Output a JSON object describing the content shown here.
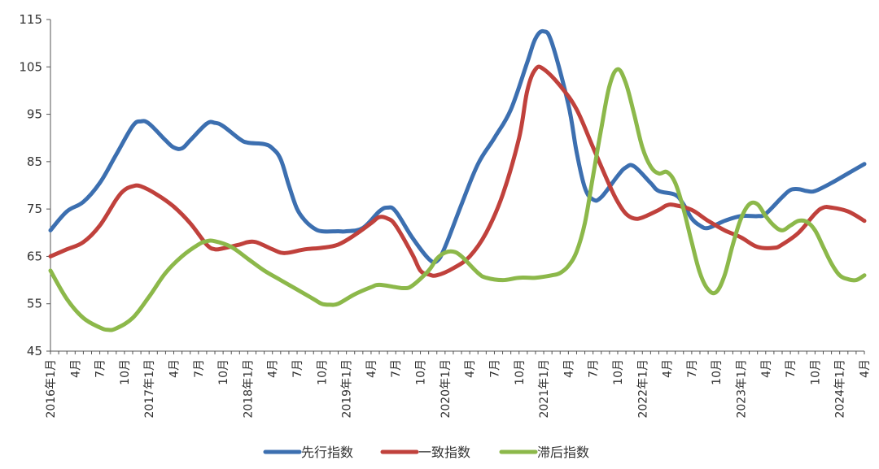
{
  "chart_data": {
    "type": "line",
    "y_axis": {
      "min": 45,
      "max": 115,
      "ticks": [
        45,
        55,
        65,
        75,
        85,
        95,
        105,
        115
      ]
    },
    "x_start": "2016-01",
    "x_end": "2024-04",
    "x_tick_labels": [
      "2016年1月",
      "4月",
      "7月",
      "10月",
      "2017年1月",
      "4月",
      "7月",
      "10月",
      "2018年1月",
      "4月",
      "7月",
      "10月",
      "2019年1月",
      "4月",
      "7月",
      "10月",
      "2020年1月",
      "4月",
      "7月",
      "10月",
      "2021年1月",
      "4月",
      "7月",
      "10月",
      "2022年1月",
      "4月",
      "7月",
      "10月",
      "2023年1月",
      "4月",
      "7月",
      "10月",
      "2024年1月",
      "4月"
    ],
    "legend_position": "bottom",
    "grid": false,
    "series": [
      {
        "name": "先行指数",
        "color": "#3c6fb0",
        "keypoints": [
          [
            "2016-01",
            70.5
          ],
          [
            "2016-03",
            74.5
          ],
          [
            "2016-05",
            76.5
          ],
          [
            "2016-07",
            80.5
          ],
          [
            "2016-09",
            86.5
          ],
          [
            "2016-11",
            92.5
          ],
          [
            "2016-12",
            93.5
          ],
          [
            "2017-01",
            93.0
          ],
          [
            "2017-03",
            89.5
          ],
          [
            "2017-04",
            88.0
          ],
          [
            "2017-05",
            87.8
          ],
          [
            "2017-06",
            89.5
          ],
          [
            "2017-08",
            93.0
          ],
          [
            "2017-09",
            93.2
          ],
          [
            "2017-10",
            92.5
          ],
          [
            "2017-12",
            89.8
          ],
          [
            "2018-01",
            89.0
          ],
          [
            "2018-03",
            88.7
          ],
          [
            "2018-04",
            87.8
          ],
          [
            "2018-05",
            85.5
          ],
          [
            "2018-06",
            80.0
          ],
          [
            "2018-07",
            75.0
          ],
          [
            "2018-08",
            72.5
          ],
          [
            "2018-09",
            71.0
          ],
          [
            "2018-10",
            70.3
          ],
          [
            "2018-12",
            70.3
          ],
          [
            "2019-01",
            70.3
          ],
          [
            "2019-03",
            71.0
          ],
          [
            "2019-05",
            74.5
          ],
          [
            "2019-06",
            75.3
          ],
          [
            "2019-07",
            74.5
          ],
          [
            "2019-09",
            69.0
          ],
          [
            "2019-11",
            64.5
          ],
          [
            "2019-12",
            64.0
          ],
          [
            "2020-01",
            67.0
          ],
          [
            "2020-03",
            76.0
          ],
          [
            "2020-05",
            84.5
          ],
          [
            "2020-07",
            90.0
          ],
          [
            "2020-09",
            96.0
          ],
          [
            "2020-11",
            106.0
          ],
          [
            "2020-12",
            111.0
          ],
          [
            "2021-01",
            112.5
          ],
          [
            "2021-02",
            110.0
          ],
          [
            "2021-04",
            97.0
          ],
          [
            "2021-05",
            87.0
          ],
          [
            "2021-06",
            79.5
          ],
          [
            "2021-07",
            77.0
          ],
          [
            "2021-08",
            77.5
          ],
          [
            "2021-10",
            82.0
          ],
          [
            "2021-11",
            83.8
          ],
          [
            "2021-12",
            84.0
          ],
          [
            "2022-02",
            80.5
          ],
          [
            "2022-03",
            78.8
          ],
          [
            "2022-05",
            78.0
          ],
          [
            "2022-06",
            76.0
          ],
          [
            "2022-07",
            73.0
          ],
          [
            "2022-08",
            71.5
          ],
          [
            "2022-09",
            71.0
          ],
          [
            "2022-11",
            72.5
          ],
          [
            "2023-01",
            73.5
          ],
          [
            "2023-03",
            73.5
          ],
          [
            "2023-04",
            74.0
          ],
          [
            "2023-06",
            77.5
          ],
          [
            "2023-07",
            79.0
          ],
          [
            "2023-08",
            79.2
          ],
          [
            "2023-09",
            78.8
          ],
          [
            "2023-10",
            78.8
          ],
          [
            "2023-12",
            80.5
          ],
          [
            "2024-02",
            82.5
          ],
          [
            "2024-04",
            84.5
          ]
        ]
      },
      {
        "name": "一致指数",
        "color": "#c0413c",
        "keypoints": [
          [
            "2016-01",
            65.0
          ],
          [
            "2016-03",
            66.5
          ],
          [
            "2016-05",
            68.0
          ],
          [
            "2016-07",
            71.5
          ],
          [
            "2016-09",
            77.0
          ],
          [
            "2016-10",
            79.0
          ],
          [
            "2016-11",
            79.8
          ],
          [
            "2016-12",
            79.8
          ],
          [
            "2017-02",
            78.0
          ],
          [
            "2017-04",
            75.5
          ],
          [
            "2017-06",
            72.0
          ],
          [
            "2017-08",
            67.5
          ],
          [
            "2017-09",
            66.5
          ],
          [
            "2017-10",
            66.7
          ],
          [
            "2017-12",
            67.5
          ],
          [
            "2018-01",
            68.0
          ],
          [
            "2018-02",
            68.0
          ],
          [
            "2018-04",
            66.5
          ],
          [
            "2018-05",
            65.8
          ],
          [
            "2018-06",
            65.8
          ],
          [
            "2018-08",
            66.5
          ],
          [
            "2018-10",
            66.8
          ],
          [
            "2018-12",
            67.5
          ],
          [
            "2019-02",
            69.5
          ],
          [
            "2019-04",
            72.0
          ],
          [
            "2019-05",
            73.3
          ],
          [
            "2019-06",
            73.0
          ],
          [
            "2019-07",
            71.5
          ],
          [
            "2019-09",
            65.5
          ],
          [
            "2019-10",
            62.0
          ],
          [
            "2019-11",
            61.2
          ],
          [
            "2019-12",
            61.0
          ],
          [
            "2020-02",
            62.5
          ],
          [
            "2020-04",
            65.0
          ],
          [
            "2020-06",
            70.0
          ],
          [
            "2020-08",
            78.0
          ],
          [
            "2020-10",
            90.0
          ],
          [
            "2020-11",
            100.0
          ],
          [
            "2020-12",
            104.5
          ],
          [
            "2021-01",
            104.5
          ],
          [
            "2021-03",
            101.0
          ],
          [
            "2021-05",
            96.0
          ],
          [
            "2021-07",
            88.0
          ],
          [
            "2021-09",
            80.0
          ],
          [
            "2021-10",
            76.5
          ],
          [
            "2021-11",
            74.0
          ],
          [
            "2021-12",
            73.0
          ],
          [
            "2022-01",
            73.2
          ],
          [
            "2022-03",
            74.8
          ],
          [
            "2022-04",
            75.8
          ],
          [
            "2022-05",
            75.8
          ],
          [
            "2022-07",
            74.8
          ],
          [
            "2022-09",
            72.5
          ],
          [
            "2022-11",
            70.5
          ],
          [
            "2023-01",
            69.0
          ],
          [
            "2023-03",
            67.0
          ],
          [
            "2023-05",
            66.8
          ],
          [
            "2023-06",
            67.5
          ],
          [
            "2023-08",
            70.0
          ],
          [
            "2023-10",
            74.0
          ],
          [
            "2023-11",
            75.3
          ],
          [
            "2023-12",
            75.3
          ],
          [
            "2024-02",
            74.5
          ],
          [
            "2024-04",
            72.5
          ]
        ]
      },
      {
        "name": "滞后指数",
        "color": "#8cb84a",
        "keypoints": [
          [
            "2016-01",
            62.0
          ],
          [
            "2016-03",
            56.0
          ],
          [
            "2016-05",
            52.0
          ],
          [
            "2016-07",
            50.0
          ],
          [
            "2016-08",
            49.5
          ],
          [
            "2016-09",
            49.8
          ],
          [
            "2016-11",
            52.0
          ],
          [
            "2017-01",
            56.5
          ],
          [
            "2017-03",
            61.5
          ],
          [
            "2017-05",
            65.0
          ],
          [
            "2017-07",
            67.5
          ],
          [
            "2017-08",
            68.2
          ],
          [
            "2017-09",
            68.2
          ],
          [
            "2017-11",
            67.0
          ],
          [
            "2018-01",
            64.5
          ],
          [
            "2018-03",
            62.0
          ],
          [
            "2018-05",
            60.0
          ],
          [
            "2018-07",
            58.0
          ],
          [
            "2018-09",
            56.0
          ],
          [
            "2018-10",
            55.0
          ],
          [
            "2018-11",
            54.8
          ],
          [
            "2018-12",
            55.0
          ],
          [
            "2019-02",
            57.0
          ],
          [
            "2019-04",
            58.5
          ],
          [
            "2019-05",
            59.0
          ],
          [
            "2019-07",
            58.5
          ],
          [
            "2019-08",
            58.3
          ],
          [
            "2019-09",
            58.8
          ],
          [
            "2019-11",
            62.0
          ],
          [
            "2019-12",
            64.5
          ],
          [
            "2020-01",
            65.8
          ],
          [
            "2020-02",
            66.0
          ],
          [
            "2020-03",
            65.0
          ],
          [
            "2020-05",
            61.5
          ],
          [
            "2020-06",
            60.5
          ],
          [
            "2020-08",
            60.0
          ],
          [
            "2020-10",
            60.5
          ],
          [
            "2020-12",
            60.5
          ],
          [
            "2021-02",
            61.0
          ],
          [
            "2021-03",
            61.5
          ],
          [
            "2021-04",
            63.0
          ],
          [
            "2021-05",
            66.0
          ],
          [
            "2021-06",
            72.0
          ],
          [
            "2021-07",
            82.0
          ],
          [
            "2021-08",
            92.0
          ],
          [
            "2021-09",
            101.0
          ],
          [
            "2021-10",
            104.5
          ],
          [
            "2021-11",
            101.5
          ],
          [
            "2021-12",
            95.0
          ],
          [
            "2022-01",
            88.0
          ],
          [
            "2022-02",
            84.0
          ],
          [
            "2022-03",
            82.5
          ],
          [
            "2022-04",
            82.8
          ],
          [
            "2022-05",
            80.5
          ],
          [
            "2022-06",
            75.0
          ],
          [
            "2022-07",
            68.0
          ],
          [
            "2022-08",
            61.5
          ],
          [
            "2022-09",
            58.0
          ],
          [
            "2022-10",
            57.5
          ],
          [
            "2022-11",
            61.0
          ],
          [
            "2022-12",
            67.5
          ],
          [
            "2023-01",
            73.0
          ],
          [
            "2023-02",
            76.0
          ],
          [
            "2023-03",
            76.0
          ],
          [
            "2023-04",
            73.5
          ],
          [
            "2023-05",
            71.5
          ],
          [
            "2023-06",
            70.5
          ],
          [
            "2023-07",
            71.5
          ],
          [
            "2023-08",
            72.5
          ],
          [
            "2023-09",
            72.3
          ],
          [
            "2023-10",
            70.5
          ],
          [
            "2023-11",
            67.0
          ],
          [
            "2023-12",
            63.5
          ],
          [
            "2024-01",
            61.0
          ],
          [
            "2024-02",
            60.2
          ],
          [
            "2024-03",
            60.0
          ],
          [
            "2024-04",
            61.0
          ]
        ]
      }
    ]
  }
}
